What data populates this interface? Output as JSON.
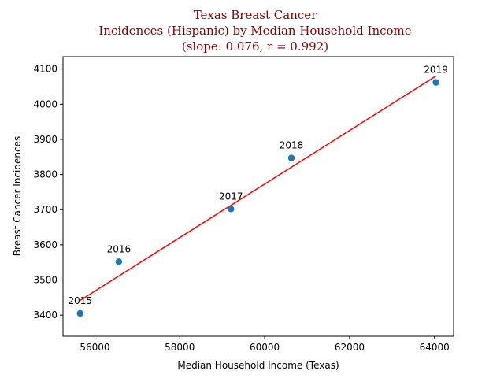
{
  "chart_data": {
    "type": "scatter",
    "title_lines": [
      "Texas Breast Cancer",
      "Incidences (Hispanic) by Median Household Income",
      "(slope: 0.076, r = 0.992)"
    ],
    "xlabel": "Median Household Income (Texas)",
    "ylabel": "Breast Cancer Incidences",
    "xlim": [
      55250,
      64450
    ],
    "ylim": [
      3340,
      4135
    ],
    "xticks": [
      56000,
      58000,
      60000,
      62000,
      64000
    ],
    "yticks": [
      3400,
      3500,
      3600,
      3700,
      3800,
      3900,
      4000,
      4100
    ],
    "grid": false,
    "points": [
      {
        "label": "2015",
        "x": 55653,
        "y": 3405
      },
      {
        "label": "2016",
        "x": 56565,
        "y": 3552
      },
      {
        "label": "2017",
        "x": 59206,
        "y": 3702
      },
      {
        "label": "2018",
        "x": 60629,
        "y": 3847
      },
      {
        "label": "2019",
        "x": 64034,
        "y": 4062
      }
    ],
    "fit_line": {
      "x": [
        55653,
        64034
      ],
      "y": [
        3442,
        4080
      ]
    },
    "colors": {
      "points": "#1f77b4",
      "fit_line": "#ff0000",
      "title": "#8b0000"
    }
  }
}
